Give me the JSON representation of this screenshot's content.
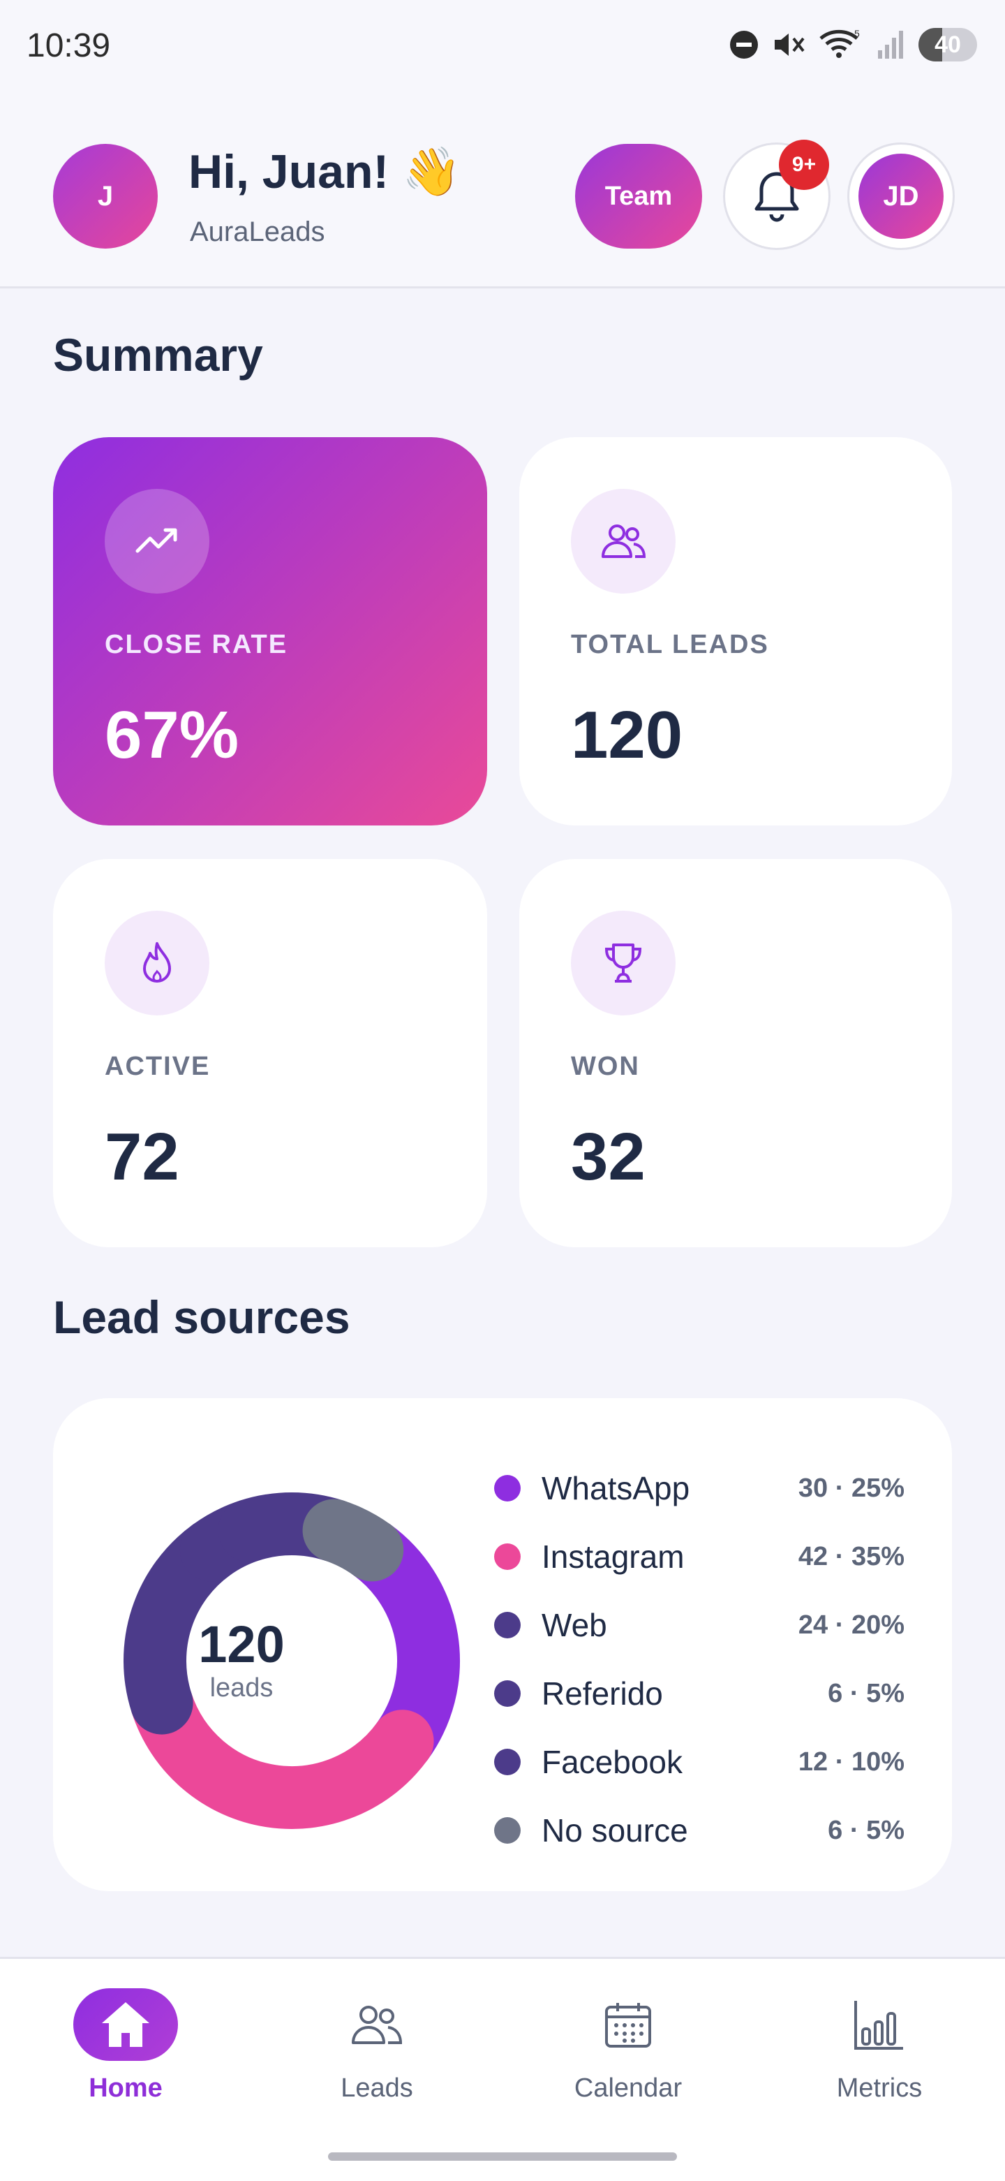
{
  "status_bar": {
    "time": "10:39",
    "battery_level": "40",
    "icons": [
      "dnd-icon",
      "mute-icon",
      "wifi-icon",
      "signal-icon",
      "battery-icon"
    ]
  },
  "header": {
    "avatar_initial": "J",
    "greeting": "Hi, Juan! 👋",
    "brand": "AuraLeads",
    "team_label": "Team",
    "notification_badge": "9+",
    "user_initials": "JD"
  },
  "summary": {
    "title": "Summary",
    "cards": [
      {
        "label": "CLOSE RATE",
        "value": "67%",
        "icon": "trending-up-icon"
      },
      {
        "label": "TOTAL LEADS",
        "value": "120",
        "icon": "users-icon"
      },
      {
        "label": "ACTIVE",
        "value": "72",
        "icon": "flame-icon"
      },
      {
        "label": "WON",
        "value": "32",
        "icon": "trophy-icon"
      }
    ]
  },
  "lead_sources": {
    "title": "Lead sources",
    "center_value": "120",
    "center_label": "leads",
    "items": [
      {
        "name": "WhatsApp",
        "value": "30 · 25%",
        "count": 30,
        "color": "#8e2ee0"
      },
      {
        "name": "Instagram",
        "value": "42 · 35%",
        "count": 42,
        "color": "#ec4899"
      },
      {
        "name": "Web",
        "value": "24 · 20%",
        "count": 24,
        "color": "#4c3b8a"
      },
      {
        "name": "Referido",
        "value": "6 · 5%",
        "count": 6,
        "color": "#4c3b8a"
      },
      {
        "name": "Facebook",
        "value": "12 · 10%",
        "count": 12,
        "color": "#4c3b8a"
      },
      {
        "name": "No source",
        "value": "6 · 5%",
        "count": 6,
        "color": "#6f7588"
      }
    ]
  },
  "nav": {
    "items": [
      {
        "label": "Home",
        "icon": "home-icon",
        "active": true
      },
      {
        "label": "Leads",
        "icon": "users-icon",
        "active": false
      },
      {
        "label": "Calendar",
        "icon": "calendar-icon",
        "active": false
      },
      {
        "label": "Metrics",
        "icon": "bar-chart-icon",
        "active": false
      }
    ]
  }
}
